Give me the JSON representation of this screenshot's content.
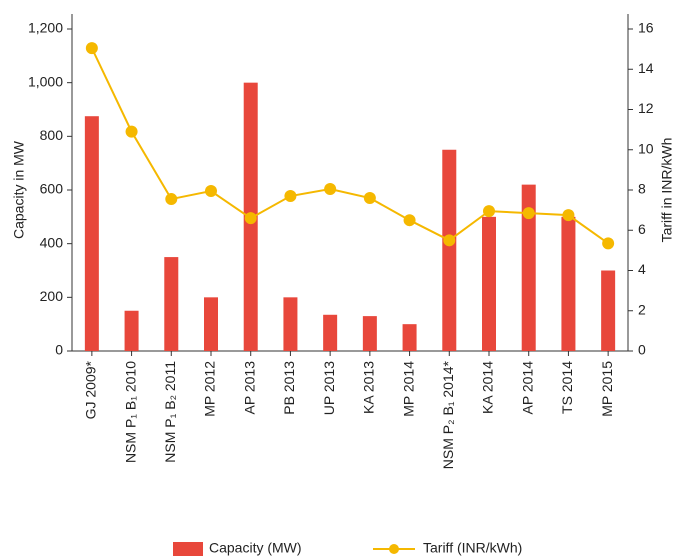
{
  "chart_data": {
    "type": "bar",
    "categories": [
      "GJ 2009*",
      "NSM P₁ B₁ 2010",
      "NSM P₁ B₂ 2011",
      "MP 2012",
      "AP 2013",
      "PB 2013",
      "UP 2013",
      "KA 2013",
      "MP 2014",
      "NSM P₂ B₁ 2014*",
      "KA 2014",
      "AP 2014",
      "TS 2014",
      "MP 2015"
    ],
    "series": [
      {
        "name": "Capacity (MW)",
        "type": "bar",
        "color": "#e8473b",
        "values": [
          875,
          150,
          350,
          200,
          1000,
          200,
          135,
          130,
          100,
          750,
          500,
          620,
          500,
          300
        ]
      },
      {
        "name": "Tariff (INR/kWh)",
        "type": "line",
        "axis": "y2",
        "color": "#f5b800",
        "values": [
          15.05,
          10.9,
          7.55,
          7.95,
          6.6,
          7.7,
          8.05,
          7.6,
          6.5,
          5.5,
          6.95,
          6.85,
          6.75,
          5.35
        ]
      }
    ],
    "ylabel": "Capacity in MW",
    "y2label": "Tariff in INR/kWh",
    "ylim": [
      0,
      1200
    ],
    "yticks": [
      0,
      200,
      400,
      600,
      800,
      {
        "value": 1000,
        "label": "1,000"
      },
      {
        "value": 1200,
        "label": "1,200"
      }
    ],
    "y2lim": [
      0,
      16
    ],
    "y2ticks": [
      0,
      2,
      4,
      6,
      8,
      10,
      12,
      14,
      16
    ],
    "legend": "bottom"
  }
}
